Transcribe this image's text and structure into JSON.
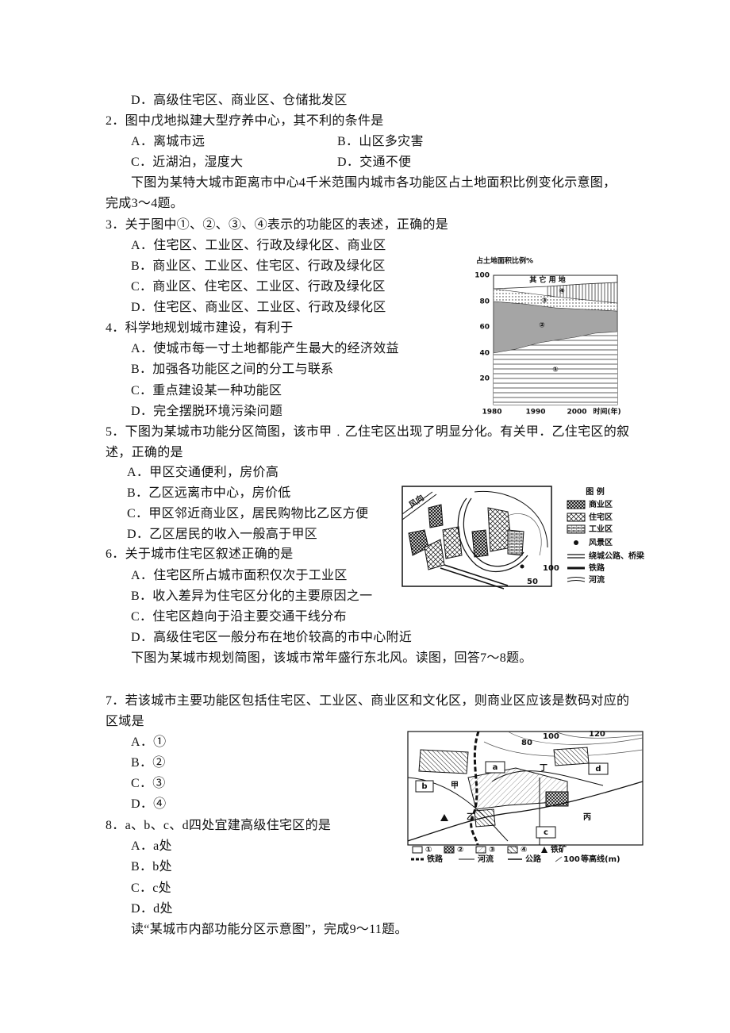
{
  "lines": [
    "D．高级住宅区、商业区、仓储批发区",
    "2．图中戊地拟建大型疗养中心，其不利的条件是",
    "A．离城市远",
    "B．山区多灾害",
    "C．近湖泊，湿度大",
    "D．交通不便",
    "下图为某特大城市距离市中心4千米范围内城市各功能区占土地面积比例变化示意图，",
    "完成3～4题。",
    "3．关于图中①、②、③、④表示的功能区的表述，正确的是",
    "A．住宅区、工业区、行政及绿化区、商业区",
    "B．商业区、工业区、住宅区、行政及绿化区",
    "C．商业区、住宅区、工业区、行政及绿化区",
    "D．住宅区、商业区、工业区、行政及绿化区",
    "4．科学地规划城市建设，有利于",
    "A．使城市每一寸土地都能产生最大的经济效益",
    "B．加强各功能区之间的分工与联系",
    "C．重点建设某一种功能区",
    "D．完全摆脱环境污染问题",
    "5．下图为某城市功能分区简图，该市甲﹒乙住宅区出现了明显分化。有关甲．乙住宅区的叙",
    "述，正确的是",
    "A．甲区交通便利，房价高",
    "B．乙区远离市中心，房价低",
    "C．甲区邻近商业区，居民购物比乙区方便",
    "D．乙区居民的收入一般高于甲区",
    "6．关于城市住宅区叙述正确的是",
    "A．住宅区所占城市面积仅次于工业区",
    "B．收入差异为住宅区分化的主要原因之一",
    "C．住宅区趋向于沿主要交通干线分布",
    "D．高级住宅区一般分布在地价较高的市中心附近",
    "下图为某城市规划简图，该城市常年盛行东北风。读图，回答7～8题。",
    "7．若该城市主要功能区包括住宅区、工业区、商业区和文化区，则商业区应该是数码对应的",
    "区域是",
    "A．①",
    "B．②",
    "C．③",
    "D．④",
    "8．a、b、c、d四处宜建高级住宅区的是",
    "A．a处",
    "B．b处",
    "C．c处",
    "D．d处",
    "读“某城市内部功能分区示意图”，完成9～11题。"
  ],
  "figure1": {
    "y_label": "占土地面积比例%",
    "yticks": [
      100,
      80,
      60,
      40,
      20
    ],
    "xticks": [
      1980,
      1990,
      2000
    ],
    "x_label": "时间(年)",
    "other_land": "其 它 用 地",
    "regions": [
      "①",
      "②",
      "③",
      "④"
    ]
  },
  "figure2": {
    "wind": "风向",
    "legend_title": "图 例",
    "legend": [
      "商业区",
      "住宅区",
      "工业区",
      "风景区",
      "绕城公路、桥梁",
      "铁路",
      "河流"
    ],
    "contours": [
      100,
      50
    ]
  },
  "figure3": {
    "contours": [
      80,
      100,
      120
    ],
    "sites": [
      "a",
      "b",
      "c",
      "d"
    ],
    "places": [
      "甲",
      "乙",
      "丙",
      "丁"
    ],
    "legend": [
      "①",
      "②",
      "③",
      "④",
      "铁矿",
      "铁路",
      "河流",
      "公路"
    ],
    "legend_contour_value": 100,
    "legend_contour_label": "等高线(m)"
  }
}
